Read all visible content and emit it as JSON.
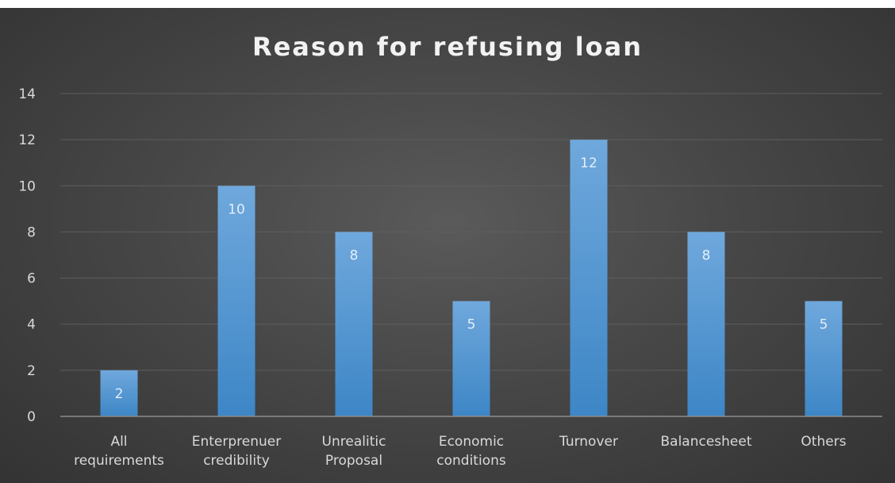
{
  "chart_data": {
    "type": "bar",
    "title": "Reason for refusing loan",
    "categories": [
      [
        "All",
        "requirements"
      ],
      [
        "Enterprenuer",
        "credibility"
      ],
      [
        "Unrealitic",
        "Proposal"
      ],
      [
        "Economic",
        "conditions"
      ],
      [
        "Turnover"
      ],
      [
        "Balancesheet"
      ],
      [
        "Others"
      ]
    ],
    "values": [
      2,
      10,
      8,
      5,
      12,
      8,
      5
    ],
    "ylim": [
      0,
      14
    ],
    "yticks": [
      0,
      2,
      4,
      6,
      8,
      10,
      12,
      14
    ],
    "grid": true,
    "legend": "none",
    "data_labels": true,
    "colors": {
      "bar_top": "#6fa8dc",
      "bar_bottom": "#3d86c6",
      "gridline": "#5e5e5e",
      "axis": "#8c8c8c",
      "text": "#d9d9d9",
      "title": "#f2f2f2"
    }
  }
}
